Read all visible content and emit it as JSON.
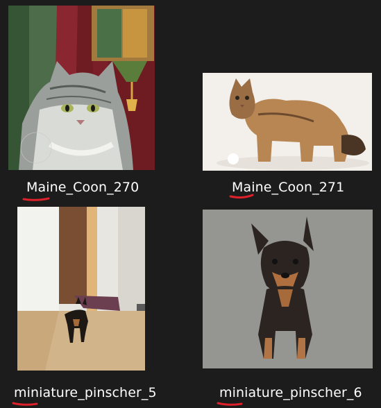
{
  "files": [
    {
      "name": "Maine_Coon_270",
      "thumbnail": "gray-tabby-cat-painting"
    },
    {
      "name": "Maine_Coon_271",
      "thumbnail": "brown-tabby-cat-photo"
    },
    {
      "name": "miniature_pinscher_5",
      "thumbnail": "small-dog-in-hallway-photo"
    },
    {
      "name": "miniature_pinscher_6",
      "thumbnail": "min-pin-on-carpet-photo"
    }
  ],
  "annotation_color": "#e0202a",
  "background_color": "#1c1c1c"
}
